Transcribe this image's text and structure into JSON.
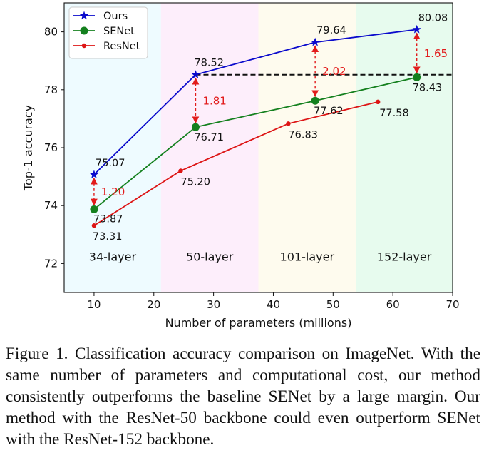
{
  "chart_data": {
    "type": "line",
    "xlabel": "Number of parameters (millions)",
    "ylabel": "Top-1 accuracy",
    "xlim": [
      5,
      70
    ],
    "ylim": [
      71.0,
      81.0
    ],
    "x_ticks": [
      10,
      20,
      30,
      40,
      50,
      60,
      70
    ],
    "y_ticks": [
      72,
      74,
      76,
      78,
      80
    ],
    "legend_position": "top-left",
    "regions": [
      {
        "label": "34-layer",
        "x_start": 5,
        "x_end": 21.2,
        "color": "#eefbff"
      },
      {
        "label": "50-layer",
        "x_start": 21.2,
        "x_end": 37.5,
        "color": "#fdeefb"
      },
      {
        "label": "101-layer",
        "x_start": 37.5,
        "x_end": 53.8,
        "color": "#fefbee"
      },
      {
        "label": "152-layer",
        "x_start": 53.8,
        "x_end": 70,
        "color": "#e7fbee"
      }
    ],
    "series": [
      {
        "name": "Ours",
        "color": "#0a0acc",
        "marker": "star",
        "x": [
          10,
          27,
          47,
          64
        ],
        "values": [
          75.07,
          78.52,
          79.64,
          80.08
        ],
        "labels": [
          "75.07",
          "78.52",
          "79.64",
          "80.08"
        ]
      },
      {
        "name": "SENet",
        "color": "#14801e",
        "marker": "circle",
        "x": [
          10,
          27,
          47,
          64
        ],
        "values": [
          73.87,
          76.71,
          77.62,
          78.43
        ],
        "labels": [
          "73.87",
          "76.71",
          "77.62",
          "78.43"
        ]
      },
      {
        "name": "ResNet",
        "color": "#dd1515",
        "marker": "dot",
        "x": [
          10,
          24.5,
          42.5,
          57.5
        ],
        "values": [
          73.31,
          75.2,
          76.83,
          77.58
        ],
        "labels": [
          "73.31",
          "75.20",
          "76.83",
          "77.58"
        ]
      }
    ],
    "baseline": {
      "y": 78.52,
      "x_start": 27,
      "x_end": 70
    },
    "gaps": [
      {
        "x": 10,
        "y_top": 75.07,
        "y_bottom": 73.87,
        "label": "1.20"
      },
      {
        "x": 27,
        "y_top": 78.52,
        "y_bottom": 76.71,
        "label": "1.81"
      },
      {
        "x": 47,
        "y_top": 79.64,
        "y_bottom": 77.62,
        "label": "2.02"
      },
      {
        "x": 64,
        "y_top": 80.08,
        "y_bottom": 78.43,
        "label": "1.65"
      }
    ]
  },
  "caption": "Figure 1. Classification accuracy comparison on ImageNet. With the same number of parameters and computational cost, our method consistently outperforms the baseline SENet by a large margin. Our method with the ResNet-50 backbone could even outperform SENet with the ResNet-152 backbone."
}
